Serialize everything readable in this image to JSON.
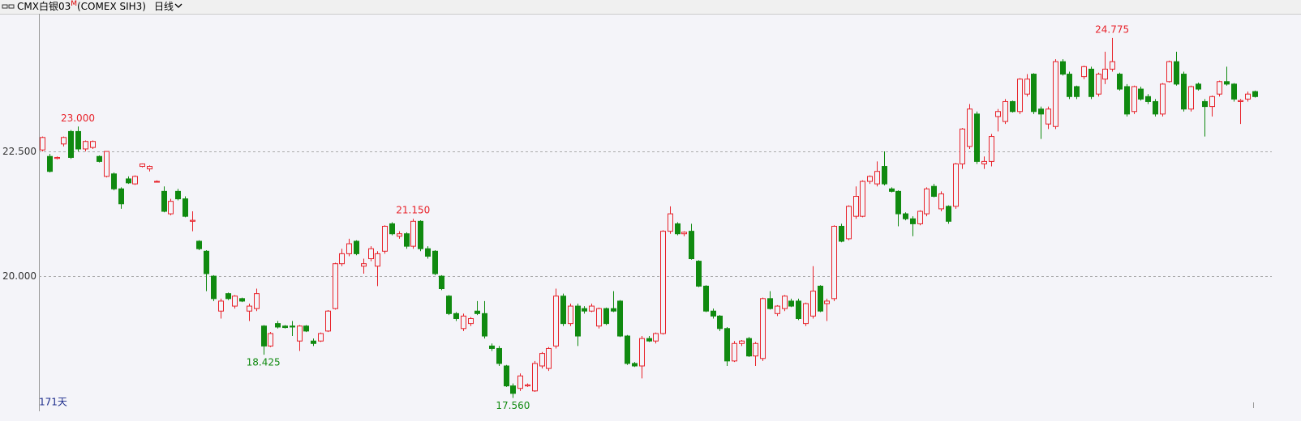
{
  "header": {
    "symbol": "CMX白银03",
    "flag": "M",
    "contract": "(COMEX SIH3)",
    "period": "日线"
  },
  "chart_data": {
    "type": "candlestick",
    "period_label": "171天",
    "ylim": [
      17.34,
      25.26
    ],
    "yticks": [
      {
        "value": 20,
        "label": "20.000"
      },
      {
        "value": 22.5,
        "label": "22.500"
      }
    ],
    "grid": true,
    "up_color": "#e8222a",
    "down_color": "#108a10",
    "extremes": [
      {
        "value": 23.0,
        "label": "23.000"
      },
      {
        "value": 21.15,
        "label": "21.150"
      },
      {
        "value": 18.425,
        "label": "18.425"
      },
      {
        "value": 17.56,
        "label": "17.560"
      },
      {
        "value": 24.775,
        "label": "24.775"
      }
    ],
    "ohlc": [
      [
        22.53,
        22.8,
        22.5,
        22.78
      ],
      [
        22.4,
        22.45,
        22.08,
        22.1
      ],
      [
        22.36,
        22.4,
        22.34,
        22.38
      ],
      [
        22.65,
        22.8,
        22.6,
        22.78
      ],
      [
        22.9,
        22.93,
        22.35,
        22.38
      ],
      [
        22.9,
        23.0,
        22.5,
        22.55
      ],
      [
        22.55,
        22.72,
        22.5,
        22.7
      ],
      [
        22.58,
        22.72,
        22.55,
        22.7
      ],
      [
        22.4,
        22.42,
        22.28,
        22.3
      ],
      [
        22.0,
        22.5,
        21.98,
        22.5
      ],
      [
        22.05,
        22.08,
        21.72,
        21.75
      ],
      [
        21.75,
        21.78,
        21.35,
        21.45
      ],
      [
        21.95,
        22.0,
        21.85,
        21.87
      ],
      [
        21.85,
        22.02,
        21.83,
        22.0
      ],
      [
        22.2,
        22.26,
        22.18,
        22.25
      ],
      [
        22.15,
        22.22,
        22.1,
        22.2
      ],
      [
        21.9,
        21.92,
        21.88,
        21.9
      ],
      [
        21.7,
        21.8,
        21.28,
        21.3
      ],
      [
        21.25,
        21.55,
        21.22,
        21.5
      ],
      [
        21.7,
        21.75,
        21.52,
        21.55
      ],
      [
        21.55,
        21.6,
        21.18,
        21.2
      ],
      [
        21.1,
        21.3,
        20.9,
        21.12
      ],
      [
        20.7,
        20.72,
        20.52,
        20.55
      ],
      [
        20.5,
        20.52,
        19.7,
        20.05
      ],
      [
        20.0,
        20.02,
        19.5,
        19.55
      ],
      [
        19.3,
        19.55,
        19.15,
        19.5
      ],
      [
        19.65,
        19.67,
        19.52,
        19.55
      ],
      [
        19.4,
        19.62,
        19.35,
        19.6
      ],
      [
        19.55,
        19.57,
        19.48,
        19.5
      ],
      [
        19.3,
        19.45,
        19.1,
        19.4
      ],
      [
        19.35,
        19.75,
        19.3,
        19.65
      ],
      [
        19.0,
        19.02,
        18.425,
        18.6
      ],
      [
        18.6,
        18.88,
        18.58,
        18.85
      ],
      [
        19.05,
        19.1,
        18.95,
        18.98
      ],
      [
        19.0,
        19.02,
        18.95,
        18.97
      ],
      [
        19.0,
        19.1,
        18.8,
        18.98
      ],
      [
        18.7,
        19.02,
        18.5,
        19.0
      ],
      [
        19.0,
        19.02,
        18.88,
        18.9
      ],
      [
        18.7,
        18.75,
        18.6,
        18.65
      ],
      [
        18.7,
        18.87,
        18.68,
        18.85
      ],
      [
        18.9,
        19.32,
        18.88,
        19.3
      ],
      [
        19.35,
        20.27,
        19.33,
        20.25
      ],
      [
        20.25,
        20.55,
        20.2,
        20.45
      ],
      [
        20.45,
        20.75,
        20.4,
        20.65
      ],
      [
        20.7,
        20.72,
        20.42,
        20.45
      ],
      [
        20.2,
        20.35,
        20.05,
        20.25
      ],
      [
        20.35,
        20.6,
        20.3,
        20.55
      ],
      [
        20.2,
        20.5,
        19.8,
        20.45
      ],
      [
        20.5,
        21.02,
        20.45,
        21.0
      ],
      [
        21.05,
        21.08,
        20.82,
        20.85
      ],
      [
        20.8,
        20.9,
        20.75,
        20.85
      ],
      [
        20.85,
        20.88,
        20.55,
        20.6
      ],
      [
        20.6,
        21.15,
        20.55,
        21.1
      ],
      [
        21.1,
        21.12,
        20.5,
        20.55
      ],
      [
        20.55,
        20.6,
        20.35,
        20.4
      ],
      [
        20.5,
        20.52,
        20.02,
        20.05
      ],
      [
        20.0,
        20.02,
        19.72,
        19.75
      ],
      [
        19.6,
        19.62,
        19.22,
        19.25
      ],
      [
        19.25,
        19.28,
        19.1,
        19.15
      ],
      [
        18.95,
        19.25,
        18.9,
        19.2
      ],
      [
        19.05,
        19.18,
        19.0,
        19.15
      ],
      [
        19.3,
        19.5,
        19.22,
        19.25
      ],
      [
        19.25,
        19.5,
        18.75,
        18.8
      ],
      [
        18.6,
        18.65,
        18.5,
        18.55
      ],
      [
        18.55,
        18.6,
        18.2,
        18.25
      ],
      [
        18.2,
        18.22,
        17.78,
        17.8
      ],
      [
        17.8,
        17.85,
        17.56,
        17.65
      ],
      [
        17.75,
        18.05,
        17.7,
        18.0
      ],
      [
        17.8,
        17.85,
        17.78,
        17.82
      ],
      [
        17.7,
        18.3,
        17.68,
        18.25
      ],
      [
        18.2,
        18.48,
        18.15,
        18.45
      ],
      [
        18.15,
        18.58,
        18.1,
        18.55
      ],
      [
        18.6,
        19.75,
        18.55,
        19.6
      ],
      [
        19.6,
        19.65,
        19.0,
        19.05
      ],
      [
        19.05,
        19.45,
        19.0,
        19.4
      ],
      [
        19.4,
        19.45,
        18.6,
        18.8
      ],
      [
        19.35,
        19.4,
        19.25,
        19.3
      ],
      [
        19.3,
        19.45,
        19.28,
        19.4
      ],
      [
        19.0,
        19.37,
        18.95,
        19.35
      ],
      [
        19.35,
        19.37,
        19.02,
        19.05
      ],
      [
        19.35,
        19.7,
        19.28,
        19.3
      ],
      [
        19.5,
        19.52,
        18.78,
        18.8
      ],
      [
        18.8,
        18.82,
        18.22,
        18.25
      ],
      [
        18.25,
        18.28,
        18.18,
        18.2
      ],
      [
        18.2,
        18.8,
        17.95,
        18.75
      ],
      [
        18.75,
        18.8,
        18.68,
        18.7
      ],
      [
        18.7,
        18.87,
        18.65,
        18.85
      ],
      [
        18.85,
        20.92,
        18.83,
        20.9
      ],
      [
        20.9,
        21.4,
        20.85,
        21.25
      ],
      [
        21.05,
        21.08,
        20.82,
        20.85
      ],
      [
        20.85,
        20.9,
        20.8,
        20.88
      ],
      [
        20.9,
        21.05,
        20.33,
        20.35
      ],
      [
        20.3,
        20.32,
        19.78,
        19.8
      ],
      [
        19.8,
        19.82,
        19.28,
        19.3
      ],
      [
        19.3,
        19.35,
        19.15,
        19.2
      ],
      [
        19.2,
        19.22,
        18.9,
        18.95
      ],
      [
        18.95,
        18.98,
        18.2,
        18.3
      ],
      [
        18.3,
        18.7,
        18.28,
        18.65
      ],
      [
        18.65,
        18.72,
        18.6,
        18.7
      ],
      [
        18.75,
        18.78,
        18.38,
        18.4
      ],
      [
        18.4,
        18.68,
        18.2,
        18.65
      ],
      [
        18.35,
        19.57,
        18.3,
        19.55
      ],
      [
        19.55,
        19.7,
        19.33,
        19.35
      ],
      [
        19.25,
        19.42,
        19.2,
        19.4
      ],
      [
        19.35,
        19.62,
        19.3,
        19.6
      ],
      [
        19.5,
        19.55,
        19.38,
        19.4
      ],
      [
        19.5,
        19.55,
        19.12,
        19.15
      ],
      [
        19.05,
        19.47,
        19.0,
        19.45
      ],
      [
        19.2,
        20.2,
        19.15,
        19.7
      ],
      [
        19.8,
        19.82,
        19.28,
        19.3
      ],
      [
        19.45,
        19.55,
        19.1,
        19.5
      ],
      [
        19.55,
        21.02,
        19.5,
        21.0
      ],
      [
        21.0,
        21.05,
        20.68,
        20.7
      ],
      [
        20.75,
        21.42,
        20.72,
        21.4
      ],
      [
        21.2,
        21.8,
        21.15,
        21.6
      ],
      [
        21.2,
        21.92,
        21.18,
        21.9
      ],
      [
        21.9,
        22.02,
        21.85,
        22.0
      ],
      [
        21.85,
        22.3,
        21.8,
        22.1
      ],
      [
        22.2,
        22.5,
        21.82,
        21.85
      ],
      [
        21.75,
        21.78,
        21.68,
        21.7
      ],
      [
        21.7,
        21.72,
        21.0,
        21.25
      ],
      [
        21.25,
        21.28,
        21.12,
        21.15
      ],
      [
        21.15,
        21.2,
        20.8,
        21.05
      ],
      [
        21.05,
        21.32,
        21.02,
        21.3
      ],
      [
        21.25,
        21.78,
        21.2,
        21.75
      ],
      [
        21.8,
        21.85,
        21.58,
        21.6
      ],
      [
        21.35,
        21.7,
        21.3,
        21.65
      ],
      [
        21.4,
        21.42,
        21.05,
        21.1
      ],
      [
        21.4,
        22.27,
        21.35,
        22.25
      ],
      [
        22.25,
        22.97,
        22.15,
        22.95
      ],
      [
        22.6,
        23.45,
        22.55,
        23.35
      ],
      [
        23.25,
        23.3,
        22.25,
        22.3
      ],
      [
        22.25,
        22.4,
        22.15,
        22.3
      ],
      [
        22.3,
        22.85,
        22.2,
        22.8
      ],
      [
        23.2,
        23.35,
        22.9,
        23.3
      ],
      [
        23.1,
        23.55,
        23.05,
        23.5
      ],
      [
        23.5,
        23.52,
        23.28,
        23.3
      ],
      [
        23.3,
        23.97,
        23.25,
        23.95
      ],
      [
        23.65,
        24.05,
        23.6,
        23.95
      ],
      [
        24.05,
        24.07,
        23.25,
        23.3
      ],
      [
        23.35,
        23.4,
        22.75,
        23.25
      ],
      [
        23.05,
        23.4,
        22.95,
        23.35
      ],
      [
        23.0,
        24.35,
        22.95,
        24.3
      ],
      [
        24.3,
        24.35,
        24.02,
        24.05
      ],
      [
        24.05,
        24.1,
        23.55,
        23.6
      ],
      [
        23.8,
        23.82,
        23.55,
        23.6
      ],
      [
        24.0,
        24.22,
        23.95,
        24.2
      ],
      [
        24.15,
        24.2,
        23.55,
        23.6
      ],
      [
        23.65,
        24.08,
        23.6,
        24.05
      ],
      [
        23.95,
        24.5,
        23.85,
        24.15
      ],
      [
        24.15,
        24.775,
        24.1,
        24.3
      ],
      [
        24.05,
        24.08,
        23.72,
        23.75
      ],
      [
        23.8,
        23.85,
        23.2,
        23.25
      ],
      [
        23.3,
        23.82,
        23.25,
        23.8
      ],
      [
        23.75,
        23.8,
        23.52,
        23.55
      ],
      [
        23.6,
        23.65,
        23.45,
        23.5
      ],
      [
        23.5,
        23.55,
        23.2,
        23.25
      ],
      [
        23.25,
        23.87,
        23.2,
        23.85
      ],
      [
        23.9,
        24.32,
        23.88,
        24.3
      ],
      [
        24.3,
        24.5,
        23.82,
        23.85
      ],
      [
        24.05,
        24.1,
        23.3,
        23.35
      ],
      [
        23.35,
        23.82,
        23.3,
        23.8
      ],
      [
        23.85,
        23.88,
        23.72,
        23.75
      ],
      [
        23.5,
        23.55,
        22.8,
        23.4
      ],
      [
        23.4,
        23.62,
        23.2,
        23.6
      ],
      [
        23.65,
        23.92,
        23.6,
        23.9
      ],
      [
        23.9,
        24.2,
        23.82,
        23.85
      ],
      [
        23.85,
        23.87,
        23.5,
        23.55
      ],
      [
        23.5,
        23.55,
        23.05,
        23.52
      ],
      [
        23.55,
        23.7,
        23.5,
        23.65
      ],
      [
        23.7,
        23.72,
        23.58,
        23.6
      ]
    ]
  }
}
